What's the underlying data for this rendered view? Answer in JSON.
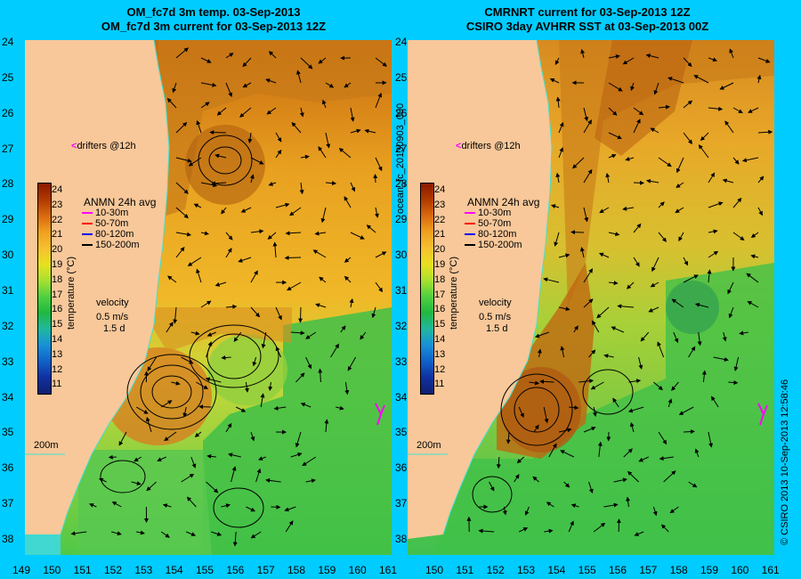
{
  "left": {
    "title_line1": "OM_fc7d 3m temp. 03-Sep-2013",
    "title_line2": "OM_fc7d 3m current for 03-Sep-2013 12Z"
  },
  "right": {
    "title_line1": "CMRNRT current for 03-Sep-2013 12Z",
    "title_line2": "CSIRO 3day AVHRR SST at 03-Sep-2013 00Z"
  },
  "y_ticks": [
    "24",
    "25",
    "26",
    "27",
    "28",
    "29",
    "30",
    "31",
    "32",
    "33",
    "34",
    "35",
    "36",
    "37",
    "38"
  ],
  "x_ticks": [
    "149",
    "150",
    "151",
    "152",
    "153",
    "154",
    "155",
    "156",
    "157",
    "158",
    "159",
    "160",
    "161"
  ],
  "x_ticks_right": [
    "150",
    "151",
    "152",
    "153",
    "154",
    "155",
    "156",
    "157",
    "158",
    "159",
    "160",
    "161"
  ],
  "colorbar": {
    "label": "temperature (°C)",
    "ticks": [
      "24",
      "23",
      "22",
      "21",
      "20",
      "19",
      "18",
      "17",
      "16",
      "15",
      "14",
      "13",
      "12",
      "11"
    ],
    "colors": [
      "#8b1a00",
      "#b03a00",
      "#d86a10",
      "#f0a020",
      "#f7c030",
      "#e8e020",
      "#a8e030",
      "#50d040",
      "#20b840",
      "#20b8a0",
      "#1890d8",
      "#1060c8",
      "#1030a0",
      "#102070"
    ]
  },
  "legend": {
    "title": "ANMN 24h avg",
    "items": [
      {
        "label": "10-30m",
        "color": "#ff00ff"
      },
      {
        "label": "50-70m",
        "color": "#ff0000"
      },
      {
        "label": "80-120m",
        "color": "#0000ff"
      },
      {
        "label": "150-200m",
        "color": "#000000"
      }
    ]
  },
  "drifters_label": "drifters @12h",
  "velocity": {
    "label": "velocity",
    "speed": "0.5 m/s",
    "duration": "1.5 d"
  },
  "isobath_label": "200m",
  "side_label": "ocean_fc_20130903_000",
  "credit": "© CSIRO 2013   10-Sep-2013 12:58:46",
  "colors": {
    "background": "#00ccff",
    "land": "#f8c89a",
    "coastline": "#40e0d0"
  }
}
